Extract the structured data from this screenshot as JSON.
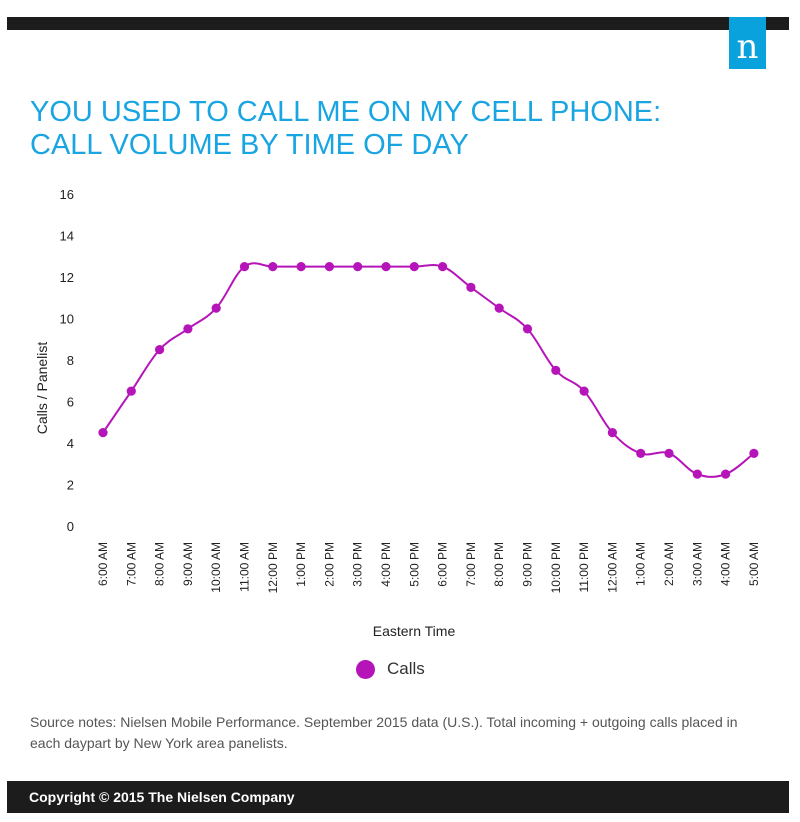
{
  "header": {
    "logo_letter": "n"
  },
  "title_lines": [
    "YOU USED TO CALL ME ON MY CELL PHONE:",
    "CALL VOLUME BY TIME OF DAY"
  ],
  "colors": {
    "title": "#19a5e1",
    "series": "#b514b8",
    "bars": "#1c1c1c",
    "logo": "#0aa2dc"
  },
  "chart_data": {
    "type": "line",
    "categories": [
      "6:00 AM",
      "7:00 AM",
      "8:00 AM",
      "9:00 AM",
      "10:00 AM",
      "11:00 AM",
      "12:00 PM",
      "1:00 PM",
      "2:00 PM",
      "3:00 PM",
      "4:00 PM",
      "5:00 PM",
      "6:00 PM",
      "7:00 PM",
      "8:00 PM",
      "9:00 PM",
      "10:00 PM",
      "11:00 PM",
      "12:00 AM",
      "1:00 AM",
      "2:00 AM",
      "3:00 AM",
      "4:00 AM",
      "5:00 AM"
    ],
    "series": [
      {
        "name": "Calls",
        "values": [
          4.5,
          6.5,
          8.5,
          9.5,
          10.5,
          12.5,
          12.5,
          12.5,
          12.5,
          12.5,
          12.5,
          12.5,
          12.5,
          11.5,
          10.5,
          9.5,
          7.5,
          6.5,
          4.5,
          3.5,
          3.5,
          2.5,
          2.5,
          3.5
        ]
      }
    ],
    "xlabel": "Eastern Time",
    "ylabel": "Calls / Panelist",
    "ylim": [
      0,
      16
    ],
    "yticks": [
      0,
      2,
      4,
      6,
      8,
      10,
      12,
      14,
      16
    ],
    "grid": false,
    "legend_position": "bottom"
  },
  "legend": {
    "label": "Calls"
  },
  "source_note": "Source notes: Nielsen Mobile Performance. September 2015 data (U.S.). Total incoming + outgoing calls placed in each daypart by New York area panelists.",
  "footer": {
    "copyright": "Copyright © 2015 The Nielsen Company"
  }
}
